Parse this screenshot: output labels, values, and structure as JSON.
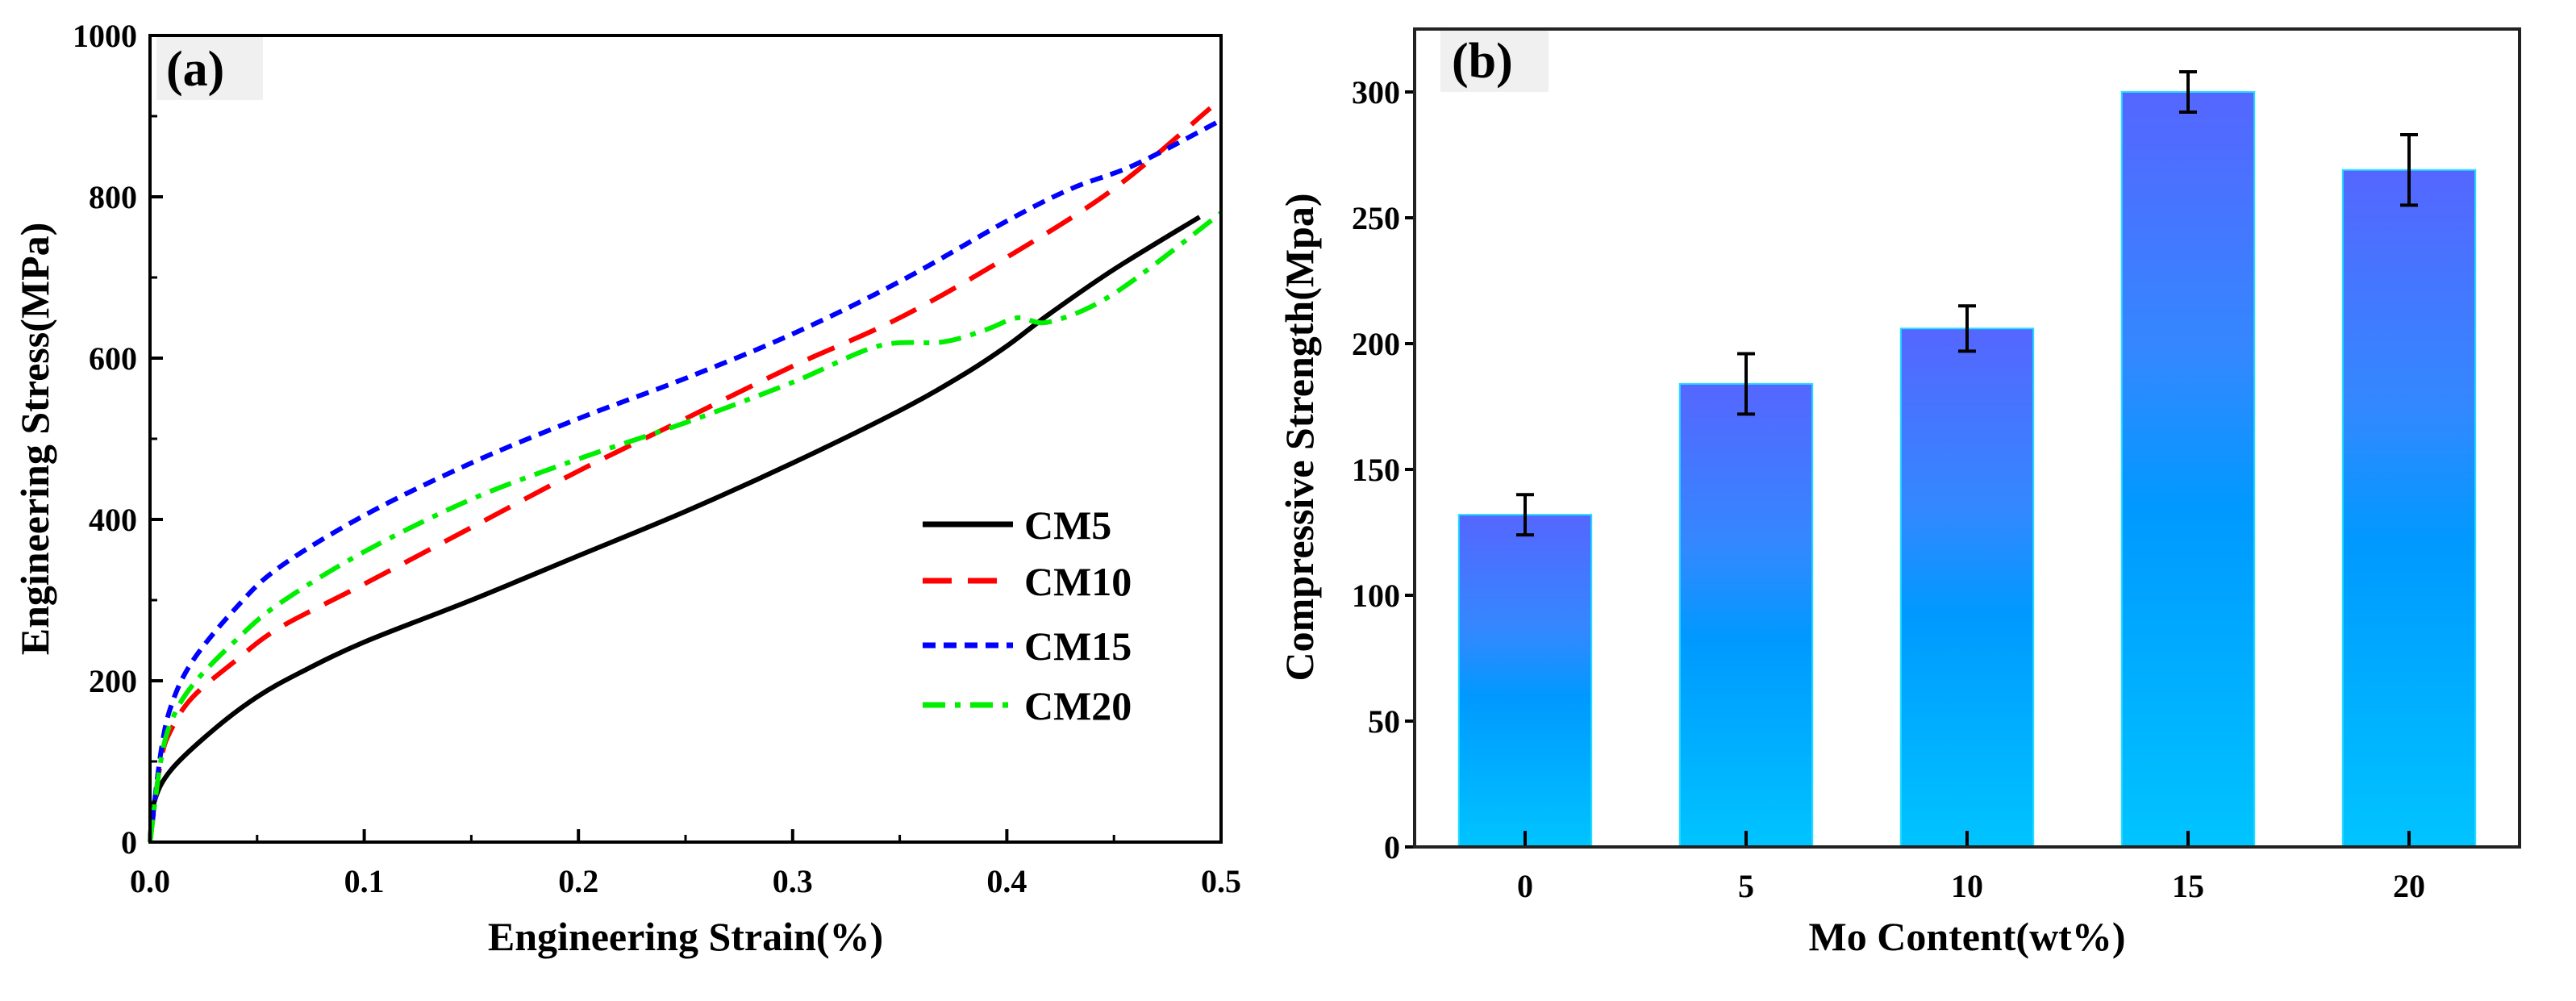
{
  "chart_data": [
    {
      "panel": "(a)",
      "type": "line",
      "xlabel": "Engineering Strain(%)",
      "ylabel": "Engineering Stress(MPa)",
      "xlim": [
        0,
        0.5
      ],
      "ylim": [
        0,
        1000
      ],
      "xticks": [
        "0.0",
        "0.1",
        "0.2",
        "0.3",
        "0.4",
        "0.5"
      ],
      "yticks": [
        "0",
        "200",
        "400",
        "600",
        "800",
        "1000"
      ],
      "legend_position": "center-right",
      "series": [
        {
          "name": "CM5",
          "color": "#000000",
          "style": "solid",
          "x": [
            0,
            0.002,
            0.01,
            0.03,
            0.05,
            0.07,
            0.1,
            0.15,
            0.2,
            0.25,
            0.3,
            0.35,
            0.38,
            0.4,
            0.42,
            0.45,
            0.49
          ],
          "y": [
            0,
            50,
            90,
            140,
            180,
            210,
            248,
            300,
            355,
            410,
            470,
            535,
            580,
            615,
            655,
            710,
            775
          ]
        },
        {
          "name": "CM10",
          "color": "#ff0000",
          "style": "dash",
          "x": [
            0,
            0.005,
            0.01,
            0.02,
            0.04,
            0.06,
            0.1,
            0.15,
            0.2,
            0.25,
            0.3,
            0.35,
            0.4,
            0.45,
            0.495
          ],
          "y": [
            0,
            100,
            140,
            180,
            225,
            265,
            320,
            390,
            460,
            525,
            590,
            650,
            725,
            810,
            910
          ]
        },
        {
          "name": "CM15",
          "color": "#0000ff",
          "style": "short-dash",
          "x": [
            0,
            0.005,
            0.01,
            0.02,
            0.04,
            0.06,
            0.1,
            0.15,
            0.2,
            0.25,
            0.3,
            0.35,
            0.4,
            0.43,
            0.46,
            0.5
          ],
          "y": [
            0,
            110,
            170,
            225,
            290,
            340,
            405,
            470,
            525,
            575,
            630,
            695,
            770,
            810,
            840,
            895
          ]
        },
        {
          "name": "CM20",
          "color": "#00ee00",
          "style": "dash-dot",
          "x": [
            0,
            0.005,
            0.01,
            0.02,
            0.04,
            0.06,
            0.1,
            0.15,
            0.2,
            0.25,
            0.3,
            0.34,
            0.37,
            0.39,
            0.405,
            0.42,
            0.45,
            0.5
          ],
          "y": [
            0,
            100,
            150,
            195,
            250,
            295,
            360,
            425,
            475,
            520,
            570,
            615,
            620,
            635,
            650,
            645,
            680,
            780
          ]
        }
      ]
    },
    {
      "panel": "(b)",
      "type": "bar",
      "xlabel": "Mo Content(wt%)",
      "ylabel": "Compressive Strength(Mpa)",
      "categories": [
        "0",
        "5",
        "10",
        "15",
        "20"
      ],
      "values": [
        132,
        184,
        206,
        300,
        269
      ],
      "errors": [
        8,
        12,
        9,
        8,
        14
      ],
      "ylim": [
        0,
        325
      ],
      "yticks": [
        "0",
        "50",
        "100",
        "150",
        "200",
        "250",
        "300"
      ],
      "colors": {
        "bar_top": "#5566ff",
        "bar_mid": "#0099ff",
        "bar_bottom": "#00c4ff"
      }
    }
  ]
}
